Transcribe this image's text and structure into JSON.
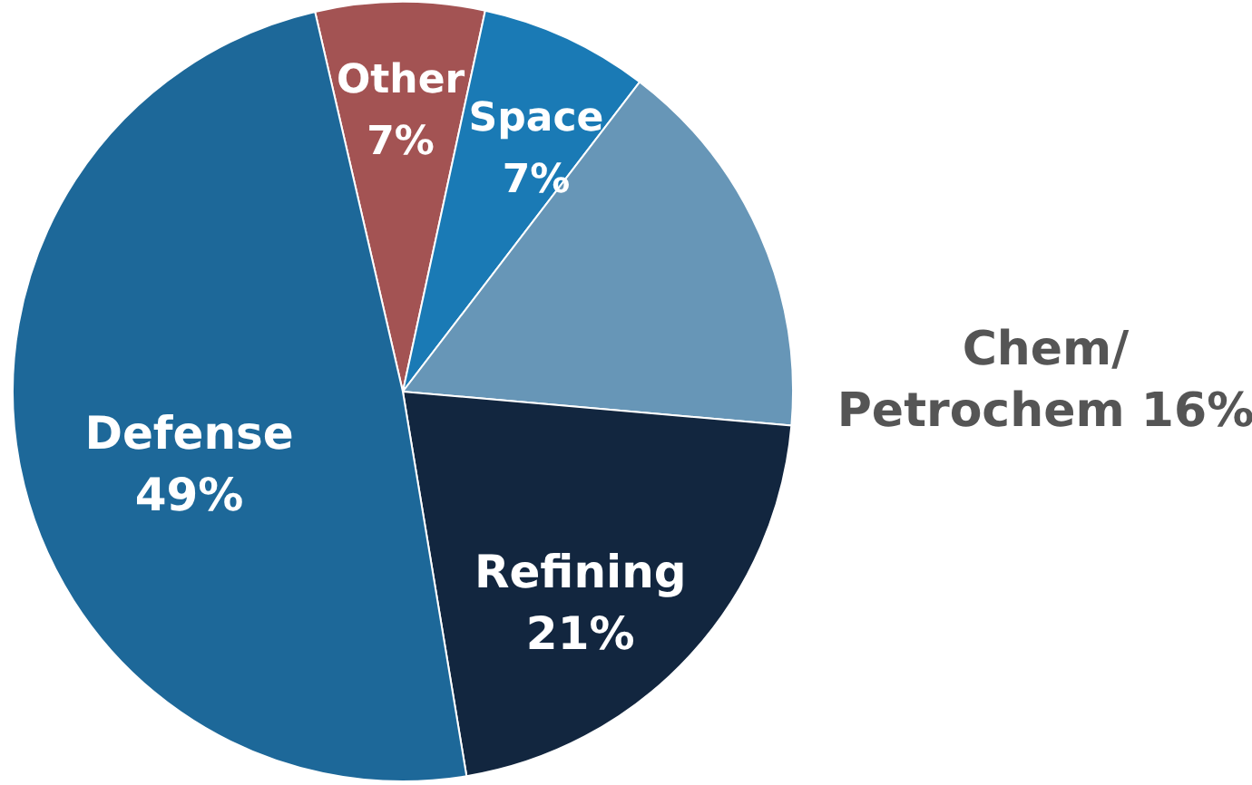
{
  "chart_data": {
    "type": "pie",
    "categories": [
      "Other",
      "Space",
      "Chem/Petrochem",
      "Refining",
      "Defense"
    ],
    "values": [
      7,
      7,
      16,
      21,
      49
    ],
    "value_labels": [
      "7%",
      "7%",
      "16%",
      "21%",
      "49%"
    ],
    "colors": [
      "#a35353",
      "#1a7ab5",
      "#6796b7",
      "#12263f",
      "#1d6899"
    ]
  }
}
